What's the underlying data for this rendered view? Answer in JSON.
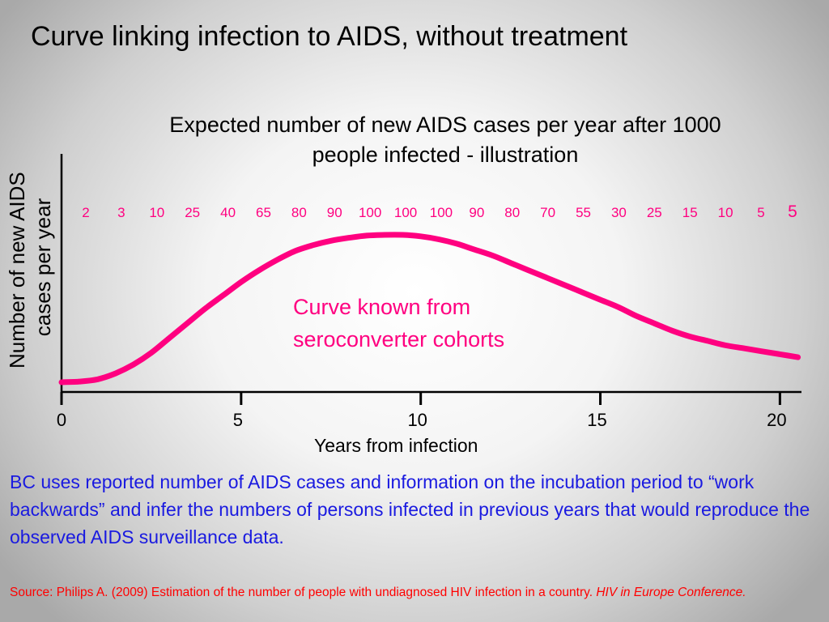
{
  "slide": {
    "title": "Curve linking infection to AIDS, without treatment",
    "body": "BC uses reported number of AIDS cases and information on the incubation period to “work backwards” and infer the numbers of persons infected in previous years that would reproduce the observed AIDS surveillance data.",
    "source_text": "Source: Philips A. (2009) Estimation of the number of people with undiagnosed HIV infection in a country. ",
    "source_italic": "HIV in Europe Conference."
  },
  "chart_data": {
    "type": "line",
    "title_line1": "Expected number of new AIDS cases per year after 1000",
    "title_line2": "people infected - illustration",
    "ylabel_line1": "Number of new AIDS",
    "ylabel_line2": "cases per year",
    "xlabel": "Years from infection",
    "xlim": [
      0,
      20.6
    ],
    "ylim": [
      0,
      100
    ],
    "xticks": [
      0,
      5,
      10,
      15,
      20
    ],
    "annotation_line1": "Curve known from",
    "annotation_line2": "seroconverter cohorts",
    "year_labels": [
      "2",
      "3",
      "10",
      "25",
      "40",
      "65",
      "80",
      "90",
      "100",
      "100",
      "100",
      "90",
      "80",
      "70",
      "55",
      "30",
      "25",
      "15",
      "10",
      "5",
      "5"
    ],
    "series": [
      {
        "x": [
          0,
          0.5,
          1,
          1.5,
          2,
          2.5,
          3,
          3.5,
          4,
          4.5,
          5,
          5.5,
          6,
          6.5,
          7,
          7.5,
          8,
          8.5,
          9,
          9.5,
          10,
          10.5,
          11,
          11.5,
          12,
          12.5,
          13,
          13.5,
          14,
          14.5,
          15,
          15.5,
          16,
          16.5,
          17,
          17.5,
          18,
          18.5,
          19,
          19.5,
          20,
          20.5
        ],
        "y": [
          0,
          0.5,
          2,
          6,
          12,
          20,
          30,
          40,
          50,
          59,
          68,
          76,
          83,
          89,
          93,
          96,
          98,
          99.5,
          100,
          100,
          99,
          97,
          94,
          90,
          86,
          81,
          76,
          71,
          66,
          61,
          56,
          51,
          45,
          40,
          35,
          31,
          28,
          25,
          23,
          21,
          19,
          17
        ]
      }
    ],
    "colors": {
      "curve": "#ff0080",
      "labels": "#ff0080",
      "axis": "#000000"
    }
  }
}
